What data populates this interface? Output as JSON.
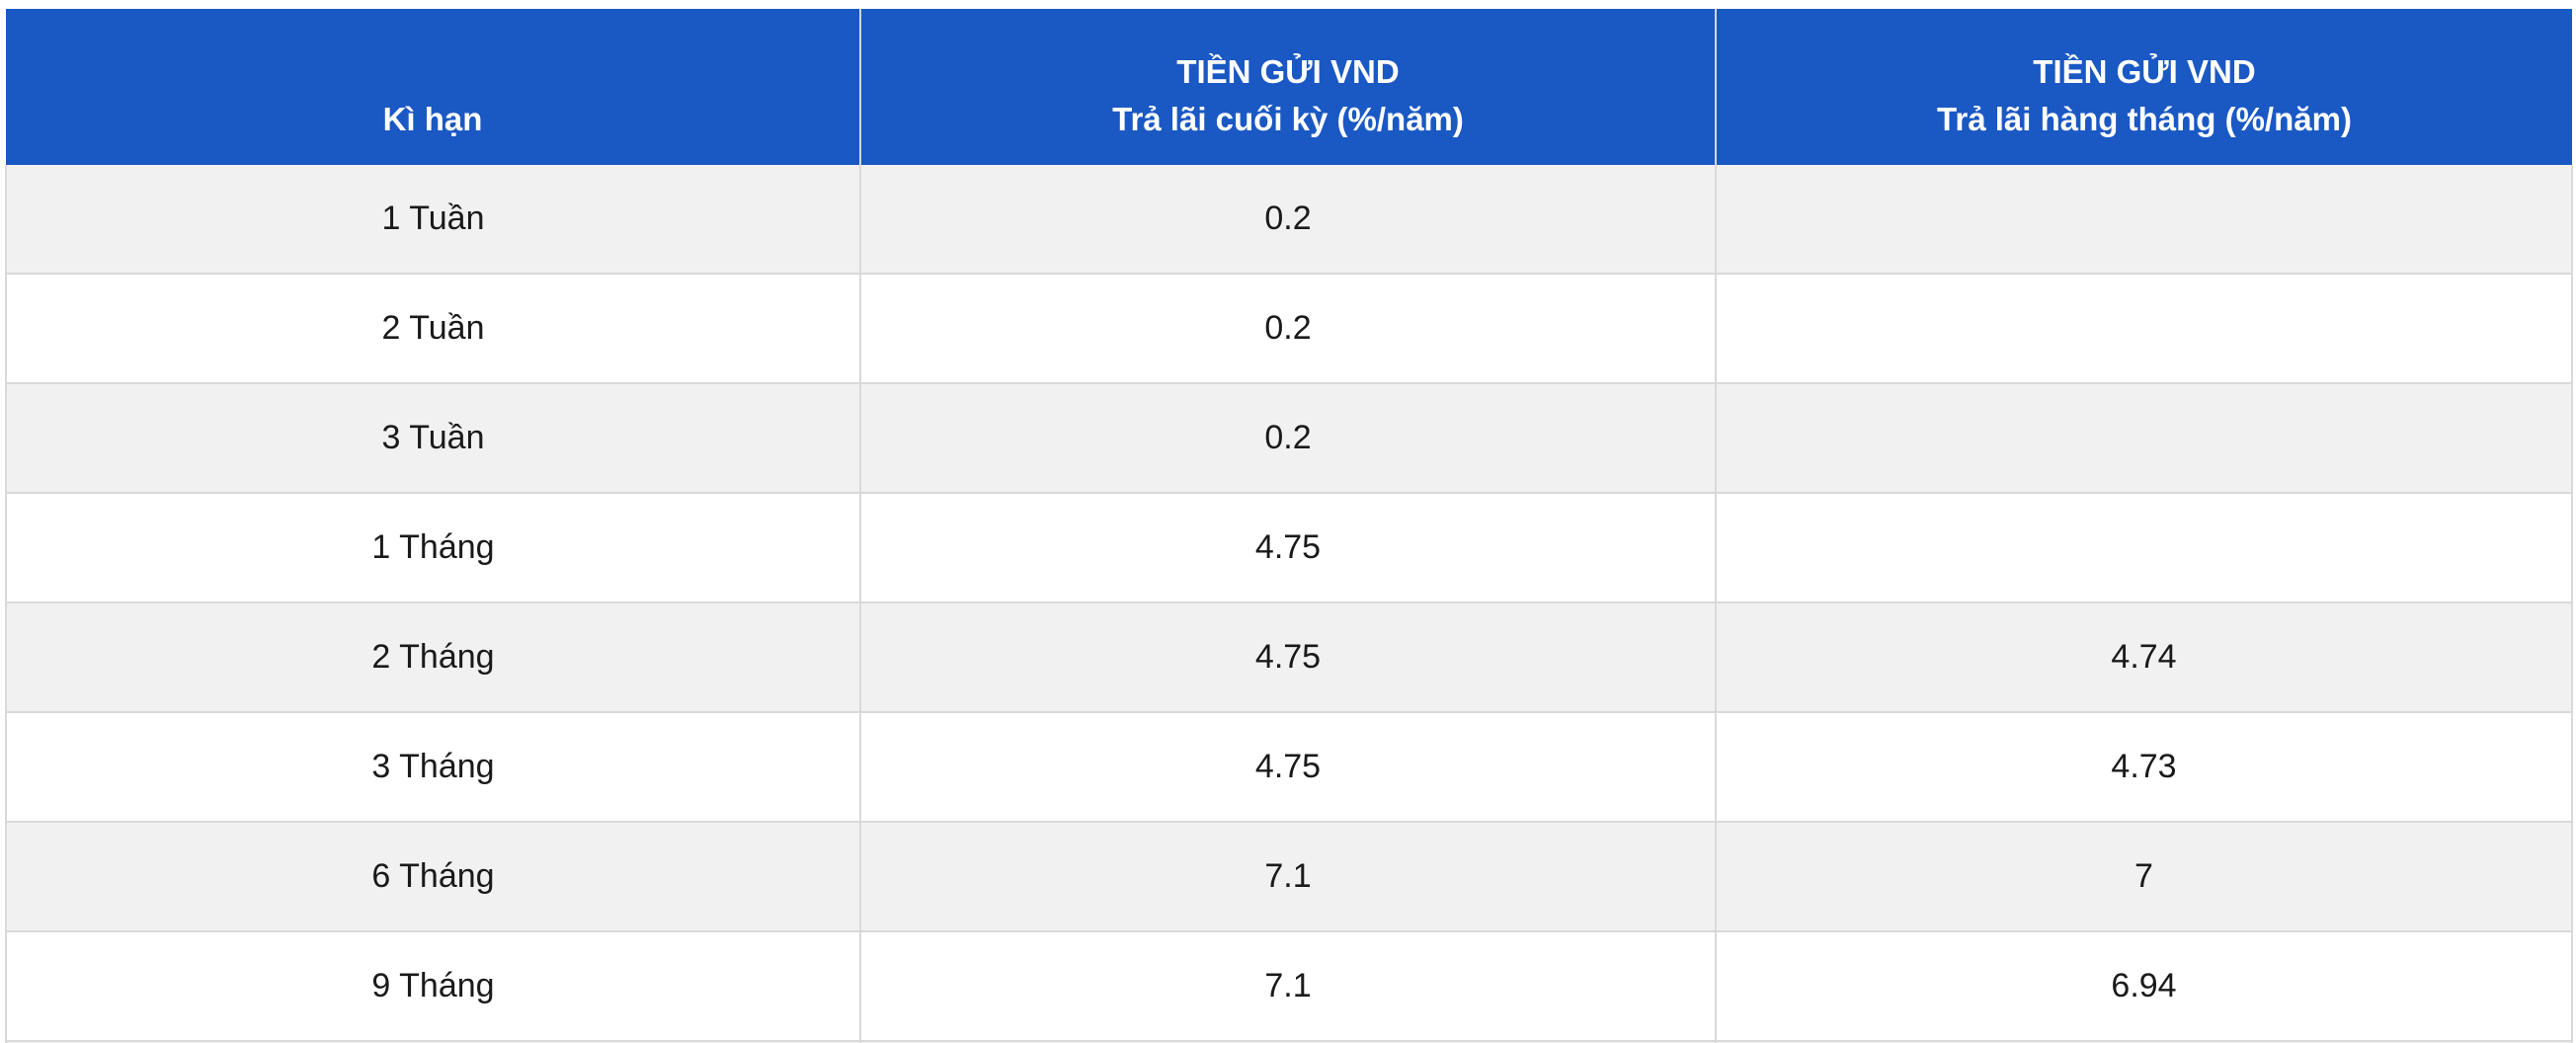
{
  "table": {
    "headers": [
      {
        "line1": "",
        "line2": "Kì hạn"
      },
      {
        "line1": "TIỀN GỬI VND",
        "line2": "Trả lãi cuối kỳ (%/năm)"
      },
      {
        "line1": "TIỀN GỬI VND",
        "line2": "Trả lãi hàng tháng (%/năm)"
      }
    ],
    "rows": [
      [
        "1 Tuần",
        "0.2",
        ""
      ],
      [
        "2 Tuần",
        "0.2",
        ""
      ],
      [
        "3 Tuần",
        "0.2",
        ""
      ],
      [
        "1 Tháng",
        "4.75",
        ""
      ],
      [
        "2 Tháng",
        "4.75",
        "4.74"
      ],
      [
        "3 Tháng",
        "4.75",
        "4.73"
      ],
      [
        "6 Tháng",
        "7.1",
        "7"
      ],
      [
        "9 Tháng",
        "7.1",
        "6.94"
      ]
    ]
  },
  "colors": {
    "header_bg": "#1a58c4",
    "header_text": "#ffffff",
    "row_alt_bg": "#f1f1f1",
    "row_bg": "#ffffff",
    "border": "#d9d9d9"
  }
}
